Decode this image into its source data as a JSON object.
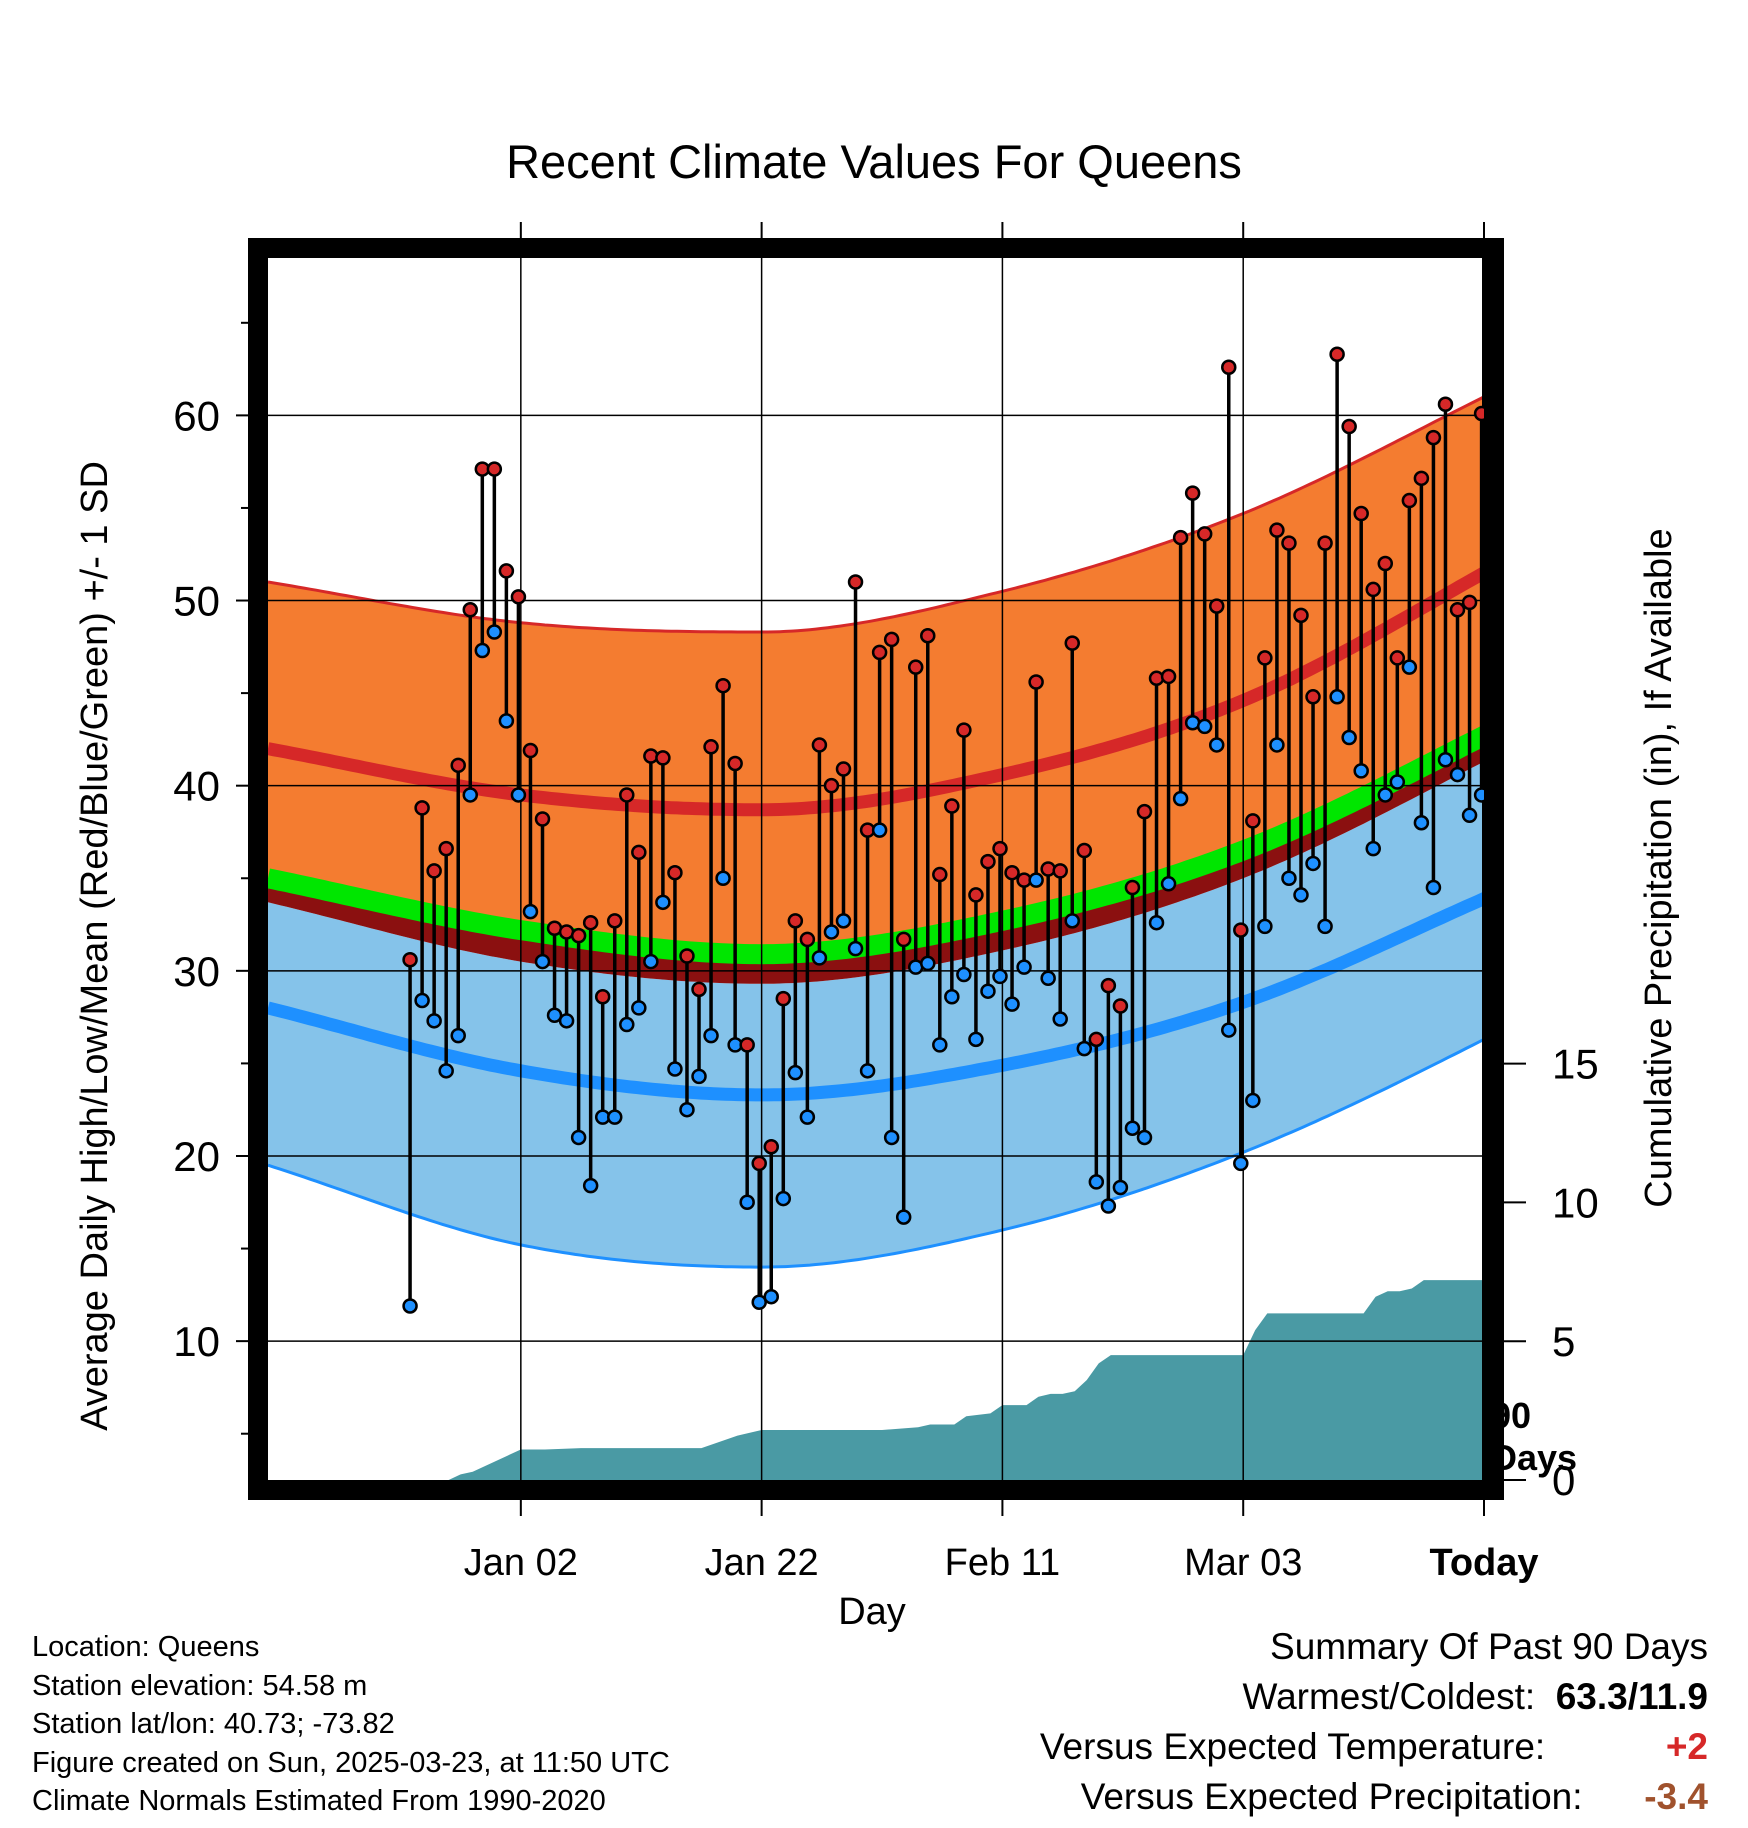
{
  "chart_data": {
    "type": "line",
    "title": "Recent Climate Values For Queens",
    "xlabel": "Day",
    "ylabel": "Average Daily High/Low/Mean (Red/Blue/Green) +/- 1 SD",
    "y2label": "Cumulative Precipitation (in), If Available",
    "x_range_days": [
      -101,
      0
    ],
    "x_tick_labels": [
      "Jan 02",
      "Jan 22",
      "Feb 11",
      "Mar 03",
      "Today"
    ],
    "x_tick_days": [
      -80,
      -60,
      -40,
      -20,
      0
    ],
    "ylim": [
      2.5,
      68.5
    ],
    "y_ticks": [
      10,
      20,
      30,
      40,
      50,
      60
    ],
    "y2_ticks": [
      0,
      5,
      10,
      15
    ],
    "y2_zero_at_temp": 2.5,
    "y2_per_temp": 0.667,
    "marker_label": "90 Days",
    "grid": true,
    "normals": {
      "days": [
        -101,
        -80,
        -60,
        -40,
        -20,
        0,
        9
      ],
      "high_mean": [
        42,
        39.5,
        38.7,
        40.6,
        44.6,
        51.5,
        55
      ],
      "high_upper": [
        51,
        48.8,
        48.3,
        50.5,
        54.7,
        61,
        64
      ],
      "low_mean": [
        28,
        24.6,
        23.3,
        24.9,
        28.3,
        33.9,
        36.5
      ],
      "low_lower": [
        19.5,
        15.2,
        14,
        16,
        20.2,
        26.3,
        29.5
      ],
      "mean": [
        35,
        32.2,
        30.9,
        32.7,
        36.5,
        42.7,
        45.8
      ],
      "wet_mean": [
        33.7,
        30.5,
        29.3,
        31.1,
        35,
        41.3,
        44.5
      ],
      "colors": {
        "high_band": "#f47c30",
        "high_line": "#d62828",
        "low_band": "#85c3ea",
        "low_line": "#1e90ff",
        "mean_line": "#00e600",
        "mean_dark": "#8b1010",
        "precip": "#4a9aa4"
      }
    },
    "series": [
      {
        "name": "High",
        "color": "#d62828",
        "values": [
          30.6,
          38.8,
          35.4,
          36.6,
          41.1,
          49.5,
          57.1,
          57.1,
          51.6,
          50.2,
          41.9,
          38.2,
          32.3,
          32.1,
          31.9,
          32.6,
          28.6,
          32.7,
          39.5,
          36.4,
          41.6,
          41.5,
          35.3,
          30.8,
          29,
          42.1,
          45.4,
          41.2,
          26,
          19.6,
          20.5,
          28.5,
          32.7,
          31.7,
          42.2,
          40,
          40.9,
          51,
          37.6,
          47.2,
          47.9,
          31.7,
          46.4,
          48.1,
          35.2,
          38.9,
          43,
          34.1,
          35.9,
          36.6,
          35.3,
          34.9,
          45.6,
          35.5,
          35.4,
          47.7,
          36.5,
          26.3,
          29.2,
          28.1,
          34.5,
          38.6,
          45.8,
          45.9,
          53.4,
          55.8,
          53.6,
          49.7,
          62.6,
          32.2,
          38.1,
          46.9,
          53.8,
          53.1,
          49.2,
          44.8,
          53.1,
          63.3,
          59.4,
          54.7,
          50.6,
          52,
          46.9,
          55.4,
          56.6,
          58.8,
          60.6,
          49.5,
          49.9,
          60.1
        ]
      },
      {
        "name": "Low",
        "color": "#1e90ff",
        "values": [
          11.9,
          28.4,
          27.3,
          24.6,
          26.5,
          39.5,
          47.3,
          48.3,
          43.5,
          39.5,
          33.2,
          30.5,
          27.6,
          27.3,
          21,
          18.4,
          22.1,
          22.1,
          27.1,
          28,
          30.5,
          33.7,
          24.7,
          22.5,
          24.3,
          26.5,
          35,
          26,
          17.5,
          12.1,
          12.4,
          17.7,
          24.5,
          22.1,
          30.7,
          32.1,
          32.7,
          31.2,
          24.6,
          37.6,
          21,
          16.7,
          30.2,
          30.4,
          26,
          28.6,
          29.8,
          26.3,
          28.9,
          29.7,
          28.2,
          30.2,
          34.9,
          29.6,
          27.4,
          32.7,
          25.8,
          18.6,
          17.3,
          18.3,
          21.5,
          21,
          32.6,
          34.7,
          39.3,
          43.4,
          43.2,
          42.2,
          26.8,
          19.6,
          23,
          32.4,
          42.2,
          35,
          34.1,
          35.8,
          32.4,
          44.8,
          42.6,
          40.8,
          36.6,
          39.5,
          40.2,
          46.4,
          38,
          34.5,
          41.4,
          40.6,
          38.4,
          39.5
        ]
      }
    ],
    "precip_cumulative": {
      "days": [
        -101,
        -86,
        -85,
        -84,
        -82,
        -80,
        -78,
        -75,
        -70,
        -65,
        -62,
        -60,
        -50,
        -47,
        -46,
        -44,
        -43,
        -41,
        -40,
        -38,
        -37,
        -36,
        -35,
        -34,
        -33,
        -32,
        -31,
        -30,
        -28,
        -20,
        -19,
        -18,
        -17,
        -16,
        -10,
        -9,
        -8,
        -7,
        -6,
        -5,
        -4,
        -3,
        -2,
        -1,
        0,
        9
      ],
      "values": [
        0,
        0,
        0.2,
        0.3,
        0.7,
        1.1,
        1.1,
        1.15,
        1.15,
        1.15,
        1.6,
        1.8,
        1.8,
        1.9,
        2.0,
        2.0,
        2.3,
        2.4,
        2.7,
        2.7,
        3.0,
        3.1,
        3.1,
        3.2,
        3.6,
        4.2,
        4.5,
        4.5,
        4.5,
        4.5,
        5.4,
        6.0,
        6.0,
        6.0,
        6.0,
        6.6,
        6.8,
        6.8,
        6.9,
        7.2,
        7.2,
        7.2,
        7.2,
        7.2,
        7.2,
        7.2
      ]
    }
  },
  "footer": {
    "location": "Location: Queens",
    "elevation": "Station elevation: 54.58 m",
    "latlon": "Station lat/lon: 40.73; -73.82",
    "created": "Figure created on Sun, 2025-03-23, at 11:50 UTC",
    "normals": "Climate Normals Estimated From 1990-2020"
  },
  "summary": {
    "heading": "Summary Of Past 90 Days",
    "warmest_label": "Warmest/Coldest:",
    "warmest_value": "63.3/11.9",
    "temp_label": "Versus Expected Temperature:",
    "temp_value": "+2",
    "temp_color": "#d62828",
    "precip_label": "Versus Expected Precipitation:",
    "precip_value": "-3.4",
    "precip_color": "#a0522d"
  }
}
